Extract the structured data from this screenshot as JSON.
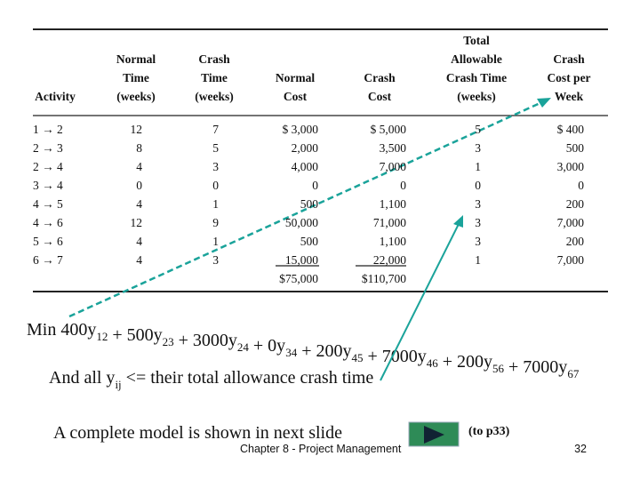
{
  "table": {
    "header": [
      [
        "Activity"
      ],
      [
        "Normal",
        "Time",
        "(weeks)"
      ],
      [
        "Crash",
        "Time",
        "(weeks)"
      ],
      [
        "Normal",
        "Cost"
      ],
      [
        "Crash",
        "Cost"
      ],
      [
        "Total",
        "Allowable",
        "Crash Time",
        "(weeks)"
      ],
      [
        "Crash",
        "Cost per",
        "Week"
      ]
    ],
    "rows": [
      [
        "1 → 2",
        "12",
        "7",
        "$ 3,000",
        "$ 5,000",
        "5",
        "$ 400"
      ],
      [
        "2 → 3",
        "8",
        "5",
        "2,000",
        "3,500",
        "3",
        "500"
      ],
      [
        "2 → 4",
        "4",
        "3",
        "4,000",
        "7,000",
        "1",
        "3,000"
      ],
      [
        "3 → 4",
        "0",
        "0",
        "0",
        "0",
        "0",
        "0"
      ],
      [
        "4 → 5",
        "4",
        "1",
        "500",
        "1,100",
        "3",
        "200"
      ],
      [
        "4 → 6",
        "12",
        "9",
        "50,000",
        "71,000",
        "3",
        "7,000"
      ],
      [
        "5 → 6",
        "4",
        "1",
        "500",
        "1,100",
        "3",
        "200"
      ],
      [
        "6 → 7",
        "4",
        "3",
        "15,000",
        "22,000",
        "1",
        "7,000"
      ]
    ],
    "totals": [
      "$75,000",
      "$110,700"
    ]
  },
  "objective": {
    "prefix": "Min",
    "terms": [
      {
        "text": "400y",
        "sub": "12"
      },
      {
        "text": "+ 500y",
        "sub": "23"
      },
      {
        "text": "+ 3000y",
        "sub": "24"
      },
      {
        "text": "+ 0y",
        "sub": "34"
      },
      {
        "text": "+ 200y",
        "sub": "45"
      },
      {
        "text": "+ 7000y",
        "sub": "46"
      },
      {
        "text": "+ 200y",
        "sub": "56"
      },
      {
        "text": "+ 7000y",
        "sub": "67"
      }
    ]
  },
  "constraint": {
    "text": "And all y",
    "sub": "ij",
    "rest": "<= their total allowance crash time"
  },
  "next_note": "A complete model is shown in next slide",
  "link_label": "(to p33)",
  "footer": {
    "chapter": "Chapter 8 - Project Management",
    "page": "32"
  }
}
